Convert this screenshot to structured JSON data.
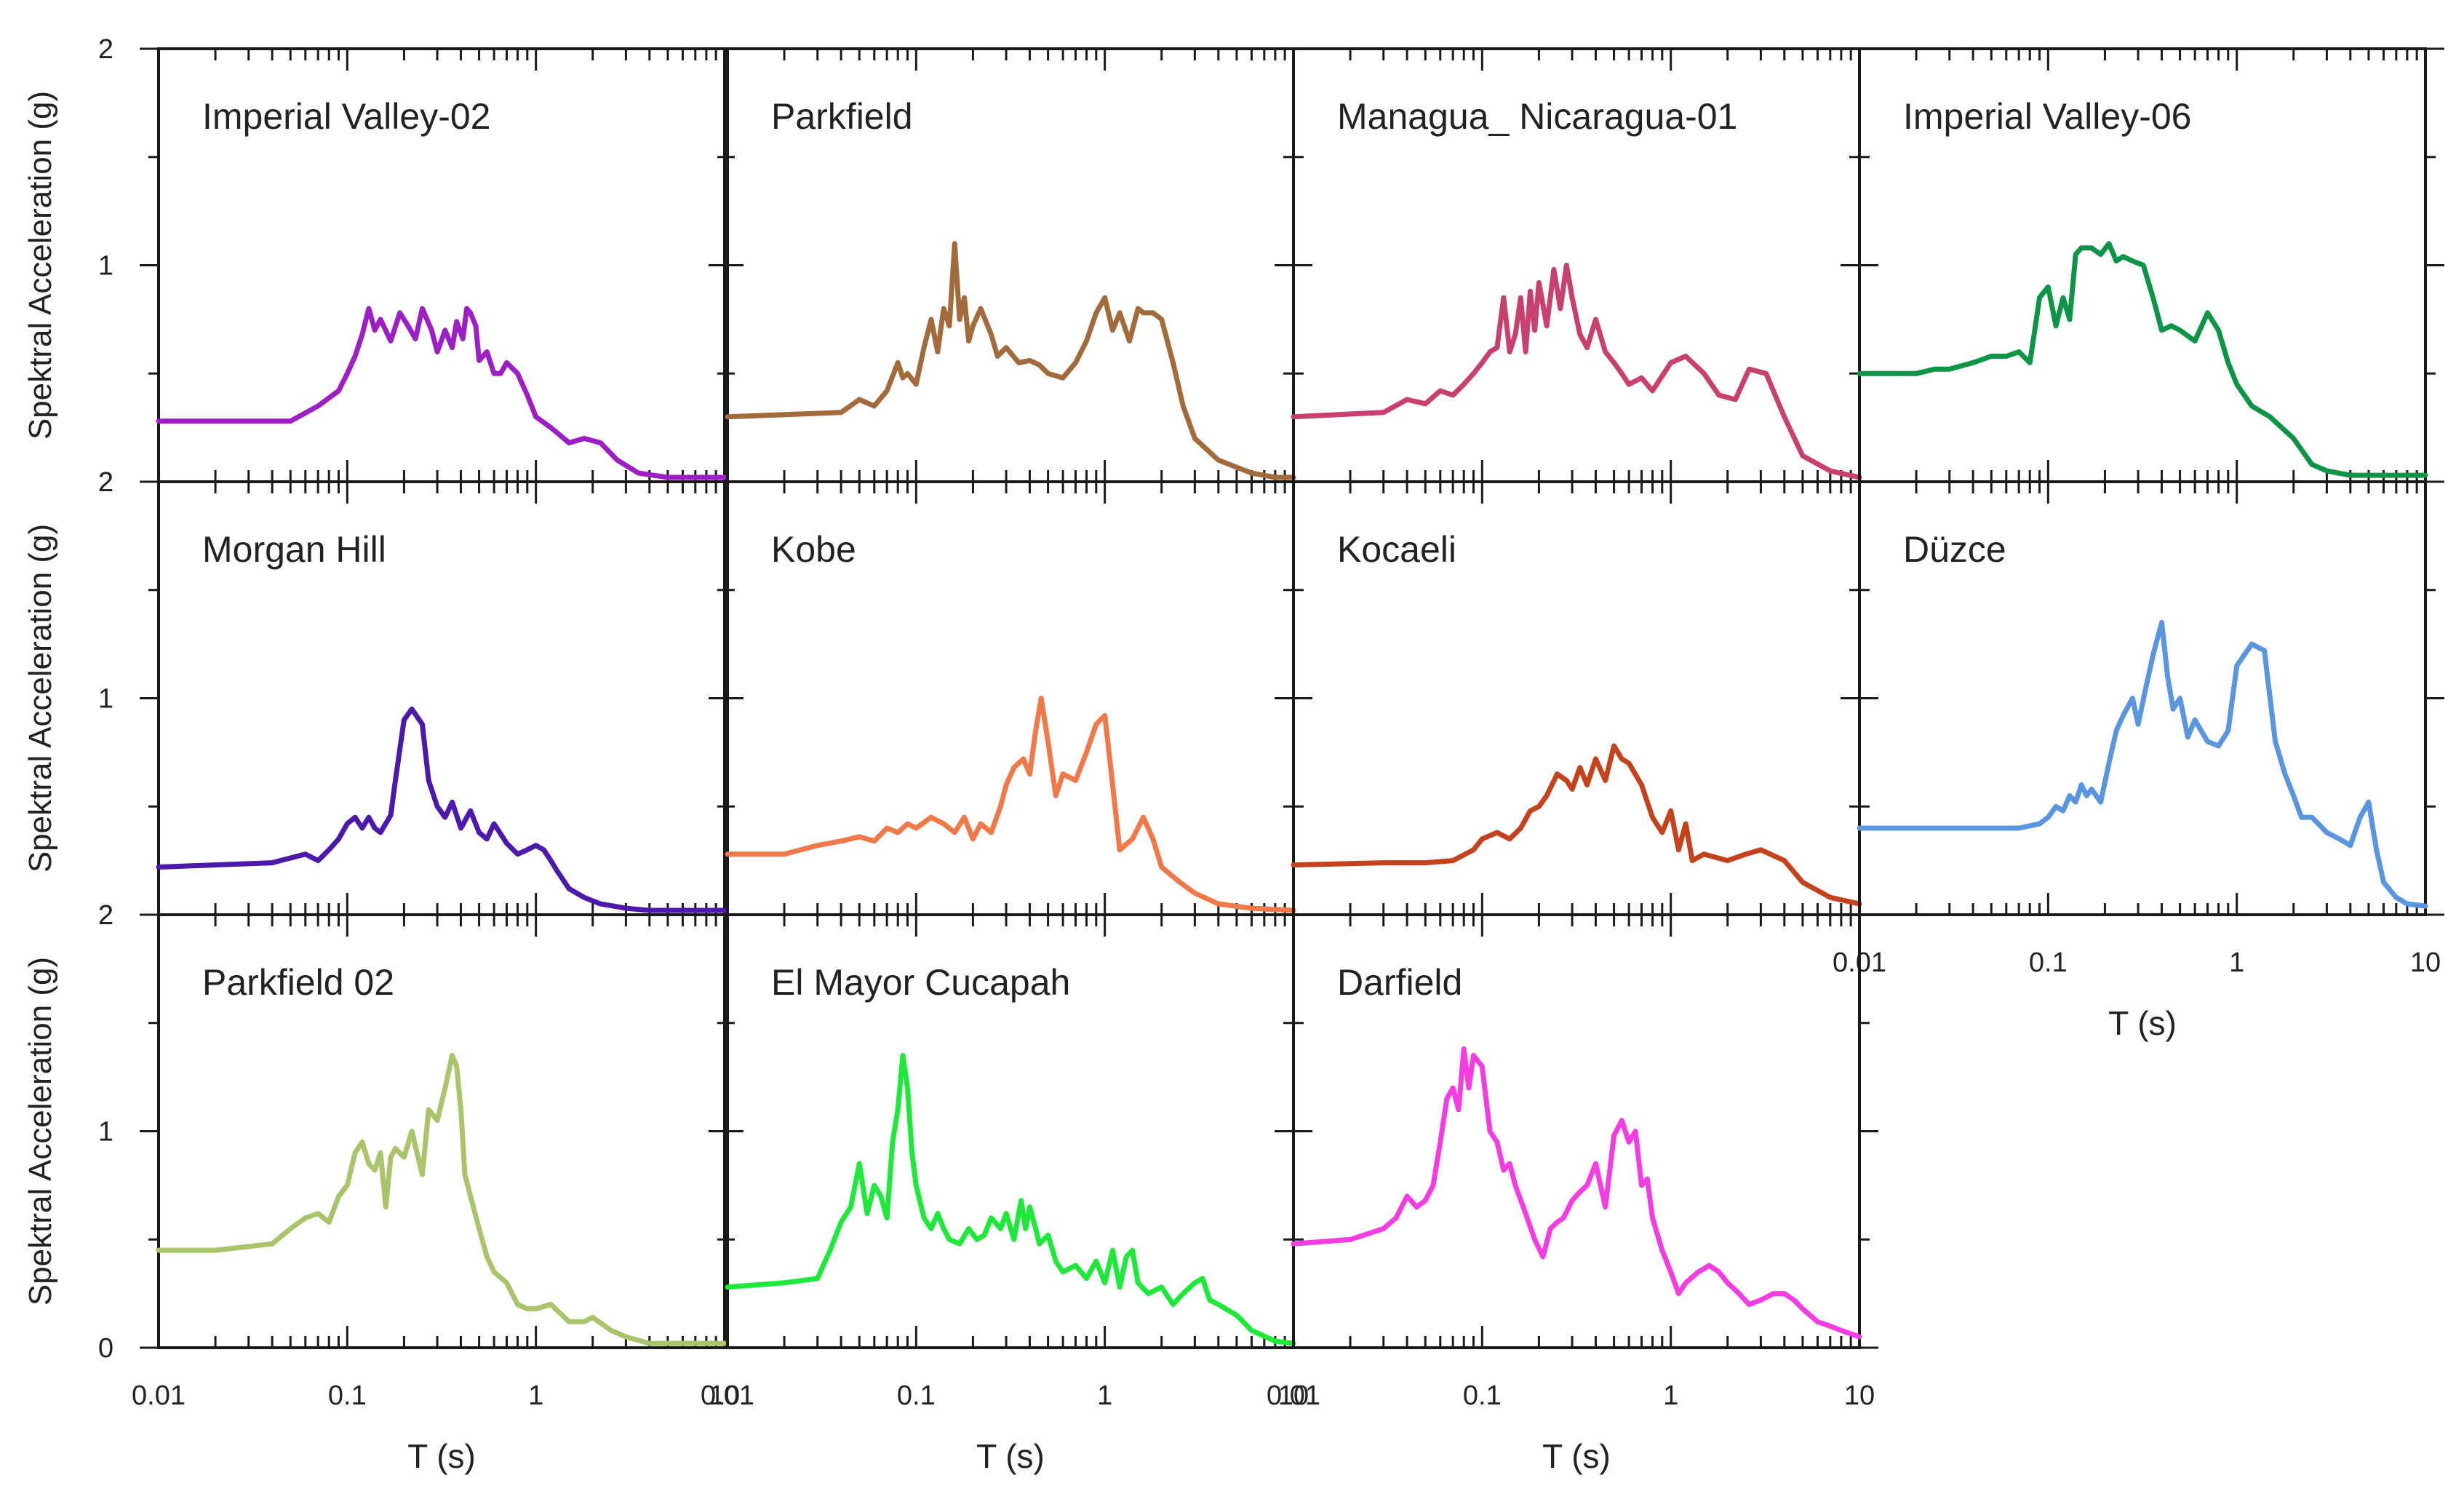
{
  "figure": {
    "ylabel": "Spektral Acceleration (g)",
    "xlabel": "T (s)"
  },
  "chart_data": [
    {
      "type": "line",
      "title": "Imperial Valley-02",
      "color": "#9b1fc2",
      "xscale": "log",
      "xlim": [
        0.01,
        10
      ],
      "ylim": [
        0,
        2
      ],
      "x": [
        0.01,
        0.05,
        0.07,
        0.09,
        0.1,
        0.11,
        0.12,
        0.13,
        0.14,
        0.15,
        0.17,
        0.19,
        0.21,
        0.23,
        0.25,
        0.28,
        0.3,
        0.33,
        0.36,
        0.38,
        0.41,
        0.43,
        0.45,
        0.48,
        0.5,
        0.55,
        0.6,
        0.65,
        0.7,
        0.8,
        0.9,
        1.0,
        1.2,
        1.5,
        1.8,
        2.2,
        2.7,
        3.5,
        5,
        7,
        10
      ],
      "values": [
        0.28,
        0.28,
        0.35,
        0.42,
        0.5,
        0.58,
        0.68,
        0.8,
        0.7,
        0.75,
        0.65,
        0.78,
        0.72,
        0.66,
        0.8,
        0.7,
        0.6,
        0.7,
        0.62,
        0.74,
        0.66,
        0.8,
        0.78,
        0.72,
        0.56,
        0.6,
        0.5,
        0.5,
        0.55,
        0.5,
        0.4,
        0.3,
        0.25,
        0.18,
        0.2,
        0.18,
        0.1,
        0.04,
        0.02,
        0.02,
        0.02
      ]
    },
    {
      "type": "line",
      "title": "Parkfield",
      "color": "#a26b3c",
      "xscale": "log",
      "xlim": [
        0.01,
        10
      ],
      "ylim": [
        0,
        2
      ],
      "x": [
        0.01,
        0.04,
        0.05,
        0.06,
        0.07,
        0.08,
        0.085,
        0.09,
        0.1,
        0.11,
        0.12,
        0.13,
        0.14,
        0.15,
        0.16,
        0.17,
        0.18,
        0.19,
        0.2,
        0.22,
        0.25,
        0.27,
        0.3,
        0.35,
        0.4,
        0.45,
        0.5,
        0.6,
        0.7,
        0.8,
        0.9,
        1.0,
        1.1,
        1.2,
        1.35,
        1.5,
        1.6,
        1.8,
        2.0,
        2.3,
        2.6,
        3.0,
        4.0,
        6.0,
        8,
        10
      ],
      "values": [
        0.3,
        0.32,
        0.38,
        0.35,
        0.42,
        0.55,
        0.48,
        0.5,
        0.45,
        0.62,
        0.75,
        0.6,
        0.8,
        0.72,
        1.1,
        0.75,
        0.85,
        0.65,
        0.72,
        0.8,
        0.68,
        0.58,
        0.62,
        0.55,
        0.56,
        0.54,
        0.5,
        0.48,
        0.55,
        0.65,
        0.78,
        0.85,
        0.7,
        0.78,
        0.65,
        0.8,
        0.78,
        0.78,
        0.75,
        0.55,
        0.35,
        0.2,
        0.1,
        0.04,
        0.02,
        0.02
      ]
    },
    {
      "type": "line",
      "title": "Managua_ Nicaragua-01",
      "color": "#c8416e",
      "xscale": "log",
      "xlim": [
        0.01,
        10
      ],
      "ylim": [
        0,
        2
      ],
      "x": [
        0.01,
        0.03,
        0.04,
        0.05,
        0.06,
        0.07,
        0.08,
        0.09,
        0.1,
        0.11,
        0.12,
        0.13,
        0.14,
        0.15,
        0.16,
        0.17,
        0.18,
        0.19,
        0.2,
        0.22,
        0.24,
        0.26,
        0.28,
        0.3,
        0.33,
        0.36,
        0.4,
        0.45,
        0.5,
        0.55,
        0.6,
        0.7,
        0.8,
        1.0,
        1.2,
        1.5,
        1.8,
        2.2,
        2.6,
        3.2,
        4.0,
        5.0,
        7.0,
        10
      ],
      "values": [
        0.3,
        0.32,
        0.38,
        0.36,
        0.42,
        0.4,
        0.45,
        0.5,
        0.55,
        0.6,
        0.62,
        0.85,
        0.6,
        0.68,
        0.85,
        0.6,
        0.88,
        0.7,
        0.92,
        0.72,
        0.98,
        0.8,
        1.0,
        0.85,
        0.68,
        0.62,
        0.75,
        0.6,
        0.55,
        0.5,
        0.45,
        0.48,
        0.42,
        0.55,
        0.58,
        0.5,
        0.4,
        0.38,
        0.52,
        0.5,
        0.3,
        0.12,
        0.05,
        0.02
      ]
    },
    {
      "type": "line",
      "title": "Imperial Valley-06",
      "color": "#0e9447",
      "xscale": "log",
      "xlim": [
        0.01,
        10
      ],
      "ylim": [
        0,
        2
      ],
      "x": [
        0.01,
        0.02,
        0.025,
        0.03,
        0.04,
        0.05,
        0.06,
        0.07,
        0.08,
        0.085,
        0.09,
        0.1,
        0.11,
        0.12,
        0.13,
        0.14,
        0.15,
        0.17,
        0.19,
        0.21,
        0.23,
        0.25,
        0.28,
        0.32,
        0.36,
        0.4,
        0.45,
        0.5,
        0.6,
        0.7,
        0.8,
        0.9,
        1.0,
        1.2,
        1.5,
        2.0,
        2.5,
        3.0,
        4,
        6,
        10
      ],
      "values": [
        0.5,
        0.5,
        0.52,
        0.52,
        0.55,
        0.58,
        0.58,
        0.6,
        0.55,
        0.7,
        0.85,
        0.9,
        0.72,
        0.85,
        0.75,
        1.05,
        1.08,
        1.08,
        1.05,
        1.1,
        1.02,
        1.04,
        1.02,
        1.0,
        0.85,
        0.7,
        0.72,
        0.7,
        0.65,
        0.78,
        0.7,
        0.55,
        0.45,
        0.35,
        0.3,
        0.2,
        0.08,
        0.05,
        0.03,
        0.03,
        0.03
      ]
    },
    {
      "type": "line",
      "title": "Morgan Hill",
      "color": "#4b1aab",
      "xscale": "log",
      "xlim": [
        0.01,
        10
      ],
      "ylim": [
        0,
        2
      ],
      "x": [
        0.01,
        0.04,
        0.06,
        0.07,
        0.08,
        0.09,
        0.1,
        0.11,
        0.12,
        0.13,
        0.14,
        0.15,
        0.17,
        0.18,
        0.2,
        0.22,
        0.25,
        0.27,
        0.3,
        0.33,
        0.36,
        0.4,
        0.45,
        0.5,
        0.55,
        0.6,
        0.7,
        0.8,
        0.9,
        1.0,
        1.1,
        1.2,
        1.3,
        1.5,
        1.8,
        2.2,
        3.0,
        4,
        6,
        10
      ],
      "values": [
        0.22,
        0.24,
        0.28,
        0.25,
        0.3,
        0.35,
        0.42,
        0.45,
        0.4,
        0.45,
        0.4,
        0.38,
        0.46,
        0.62,
        0.9,
        0.95,
        0.88,
        0.62,
        0.5,
        0.45,
        0.52,
        0.4,
        0.48,
        0.38,
        0.35,
        0.42,
        0.33,
        0.28,
        0.3,
        0.32,
        0.3,
        0.25,
        0.2,
        0.12,
        0.08,
        0.05,
        0.03,
        0.02,
        0.02,
        0.02
      ]
    },
    {
      "type": "line",
      "title": "Kobe",
      "color": "#f0794a",
      "xscale": "log",
      "xlim": [
        0.01,
        10
      ],
      "ylim": [
        0,
        2
      ],
      "x": [
        0.01,
        0.02,
        0.03,
        0.04,
        0.05,
        0.06,
        0.07,
        0.08,
        0.09,
        0.1,
        0.12,
        0.14,
        0.16,
        0.18,
        0.2,
        0.22,
        0.25,
        0.28,
        0.3,
        0.33,
        0.37,
        0.4,
        0.43,
        0.46,
        0.5,
        0.55,
        0.6,
        0.7,
        0.8,
        0.9,
        1.0,
        1.1,
        1.2,
        1.4,
        1.6,
        1.8,
        2.0,
        2.5,
        3.0,
        4.0,
        6.0,
        10
      ],
      "values": [
        0.28,
        0.28,
        0.32,
        0.34,
        0.36,
        0.34,
        0.4,
        0.38,
        0.42,
        0.4,
        0.45,
        0.42,
        0.38,
        0.45,
        0.35,
        0.42,
        0.38,
        0.5,
        0.6,
        0.68,
        0.72,
        0.65,
        0.85,
        1.0,
        0.8,
        0.55,
        0.65,
        0.62,
        0.75,
        0.88,
        0.92,
        0.6,
        0.3,
        0.35,
        0.45,
        0.35,
        0.22,
        0.15,
        0.1,
        0.05,
        0.03,
        0.02
      ]
    },
    {
      "type": "line",
      "title": "Kocaeli",
      "color": "#c2431e",
      "xscale": "log",
      "xlim": [
        0.01,
        10
      ],
      "ylim": [
        0,
        2
      ],
      "x": [
        0.01,
        0.03,
        0.05,
        0.07,
        0.09,
        0.1,
        0.12,
        0.14,
        0.16,
        0.18,
        0.2,
        0.22,
        0.25,
        0.28,
        0.3,
        0.33,
        0.36,
        0.4,
        0.45,
        0.5,
        0.55,
        0.6,
        0.7,
        0.8,
        0.9,
        1.0,
        1.1,
        1.2,
        1.3,
        1.5,
        2.0,
        2.5,
        3.0,
        4.0,
        5.0,
        7.0,
        10
      ],
      "values": [
        0.23,
        0.24,
        0.24,
        0.25,
        0.3,
        0.35,
        0.38,
        0.35,
        0.4,
        0.48,
        0.5,
        0.55,
        0.65,
        0.62,
        0.58,
        0.68,
        0.6,
        0.72,
        0.62,
        0.78,
        0.72,
        0.7,
        0.6,
        0.45,
        0.38,
        0.48,
        0.3,
        0.42,
        0.25,
        0.28,
        0.25,
        0.28,
        0.3,
        0.25,
        0.15,
        0.08,
        0.05
      ]
    },
    {
      "type": "line",
      "title": "Düzce",
      "color": "#5a95e0",
      "xscale": "log",
      "xlim": [
        0.01,
        10
      ],
      "ylim": [
        0,
        2
      ],
      "x": [
        0.01,
        0.03,
        0.05,
        0.07,
        0.09,
        0.1,
        0.11,
        0.12,
        0.13,
        0.14,
        0.15,
        0.16,
        0.17,
        0.19,
        0.21,
        0.23,
        0.25,
        0.28,
        0.3,
        0.33,
        0.36,
        0.4,
        0.43,
        0.46,
        0.5,
        0.55,
        0.6,
        0.7,
        0.8,
        0.9,
        1.0,
        1.2,
        1.4,
        1.6,
        1.8,
        2.0,
        2.2,
        2.5,
        3.0,
        3.5,
        4.0,
        4.5,
        5.0,
        5.5,
        6.0,
        7.0,
        8.0,
        10
      ],
      "values": [
        0.4,
        0.4,
        0.4,
        0.4,
        0.42,
        0.45,
        0.5,
        0.48,
        0.55,
        0.52,
        0.6,
        0.55,
        0.58,
        0.52,
        0.7,
        0.85,
        0.92,
        1.0,
        0.88,
        1.05,
        1.2,
        1.35,
        1.1,
        0.95,
        1.0,
        0.82,
        0.9,
        0.8,
        0.78,
        0.85,
        1.15,
        1.25,
        1.22,
        0.8,
        0.65,
        0.55,
        0.45,
        0.45,
        0.38,
        0.35,
        0.32,
        0.45,
        0.52,
        0.3,
        0.15,
        0.08,
        0.05,
        0.04
      ]
    },
    {
      "type": "line",
      "title": "Parkfield 02",
      "color": "#a9c46a",
      "xscale": "log",
      "xlim": [
        0.01,
        10
      ],
      "ylim": [
        0,
        2
      ],
      "x": [
        0.01,
        0.02,
        0.04,
        0.05,
        0.06,
        0.07,
        0.08,
        0.09,
        0.1,
        0.11,
        0.12,
        0.13,
        0.14,
        0.15,
        0.16,
        0.17,
        0.18,
        0.2,
        0.22,
        0.25,
        0.27,
        0.3,
        0.33,
        0.36,
        0.38,
        0.4,
        0.42,
        0.45,
        0.5,
        0.55,
        0.6,
        0.7,
        0.8,
        0.9,
        1.0,
        1.2,
        1.5,
        1.8,
        2.0,
        2.5,
        3.0,
        4.0,
        6.0,
        10
      ],
      "values": [
        0.45,
        0.45,
        0.48,
        0.55,
        0.6,
        0.62,
        0.58,
        0.7,
        0.75,
        0.9,
        0.95,
        0.85,
        0.82,
        0.9,
        0.65,
        0.88,
        0.92,
        0.88,
        1.0,
        0.8,
        1.1,
        1.05,
        1.2,
        1.35,
        1.3,
        1.1,
        0.8,
        0.7,
        0.55,
        0.42,
        0.35,
        0.3,
        0.2,
        0.18,
        0.18,
        0.2,
        0.12,
        0.12,
        0.14,
        0.08,
        0.05,
        0.02,
        0.02,
        0.02
      ]
    },
    {
      "type": "line",
      "title": "El Mayor Cucapah",
      "color": "#1ee83a",
      "xscale": "log",
      "xlim": [
        0.01,
        10
      ],
      "ylim": [
        0,
        2
      ],
      "x": [
        0.01,
        0.02,
        0.03,
        0.035,
        0.04,
        0.045,
        0.05,
        0.055,
        0.06,
        0.065,
        0.07,
        0.075,
        0.08,
        0.085,
        0.09,
        0.095,
        0.1,
        0.11,
        0.12,
        0.13,
        0.14,
        0.15,
        0.17,
        0.19,
        0.21,
        0.23,
        0.25,
        0.28,
        0.3,
        0.33,
        0.36,
        0.38,
        0.4,
        0.43,
        0.45,
        0.5,
        0.55,
        0.6,
        0.7,
        0.8,
        0.9,
        1.0,
        1.1,
        1.2,
        1.3,
        1.4,
        1.5,
        1.7,
        2.0,
        2.3,
        2.6,
        3.0,
        3.3,
        3.6,
        4.0,
        5.0,
        6.0,
        8.0,
        10
      ],
      "values": [
        0.28,
        0.3,
        0.32,
        0.45,
        0.58,
        0.65,
        0.85,
        0.62,
        0.75,
        0.7,
        0.6,
        0.95,
        1.1,
        1.35,
        1.2,
        0.9,
        0.75,
        0.6,
        0.55,
        0.62,
        0.55,
        0.5,
        0.48,
        0.55,
        0.5,
        0.52,
        0.6,
        0.55,
        0.62,
        0.5,
        0.68,
        0.55,
        0.65,
        0.55,
        0.48,
        0.52,
        0.4,
        0.35,
        0.38,
        0.32,
        0.4,
        0.3,
        0.45,
        0.28,
        0.42,
        0.45,
        0.3,
        0.25,
        0.28,
        0.2,
        0.25,
        0.3,
        0.32,
        0.22,
        0.2,
        0.15,
        0.08,
        0.03,
        0.02
      ]
    },
    {
      "type": "line",
      "title": "Darfield",
      "color": "#f33de0",
      "xscale": "log",
      "xlim": [
        0.01,
        10
      ],
      "ylim": [
        0,
        2
      ],
      "x": [
        0.01,
        0.02,
        0.03,
        0.035,
        0.04,
        0.045,
        0.05,
        0.055,
        0.06,
        0.065,
        0.07,
        0.075,
        0.08,
        0.085,
        0.09,
        0.1,
        0.11,
        0.12,
        0.13,
        0.14,
        0.15,
        0.17,
        0.19,
        0.21,
        0.23,
        0.25,
        0.27,
        0.3,
        0.33,
        0.36,
        0.4,
        0.45,
        0.5,
        0.55,
        0.6,
        0.65,
        0.7,
        0.75,
        0.8,
        0.9,
        1.0,
        1.1,
        1.2,
        1.4,
        1.6,
        1.8,
        2.0,
        2.3,
        2.6,
        3.0,
        3.5,
        4.0,
        4.5,
        5.0,
        6.0,
        7.0,
        8.0,
        10
      ],
      "values": [
        0.48,
        0.5,
        0.55,
        0.6,
        0.7,
        0.65,
        0.68,
        0.75,
        0.95,
        1.15,
        1.2,
        1.1,
        1.38,
        1.2,
        1.35,
        1.3,
        1.0,
        0.95,
        0.82,
        0.85,
        0.75,
        0.62,
        0.5,
        0.42,
        0.55,
        0.58,
        0.6,
        0.68,
        0.72,
        0.75,
        0.85,
        0.65,
        0.98,
        1.05,
        0.95,
        1.0,
        0.75,
        0.78,
        0.6,
        0.45,
        0.35,
        0.25,
        0.3,
        0.35,
        0.38,
        0.35,
        0.3,
        0.25,
        0.2,
        0.22,
        0.25,
        0.25,
        0.22,
        0.18,
        0.12,
        0.1,
        0.08,
        0.05
      ]
    }
  ]
}
